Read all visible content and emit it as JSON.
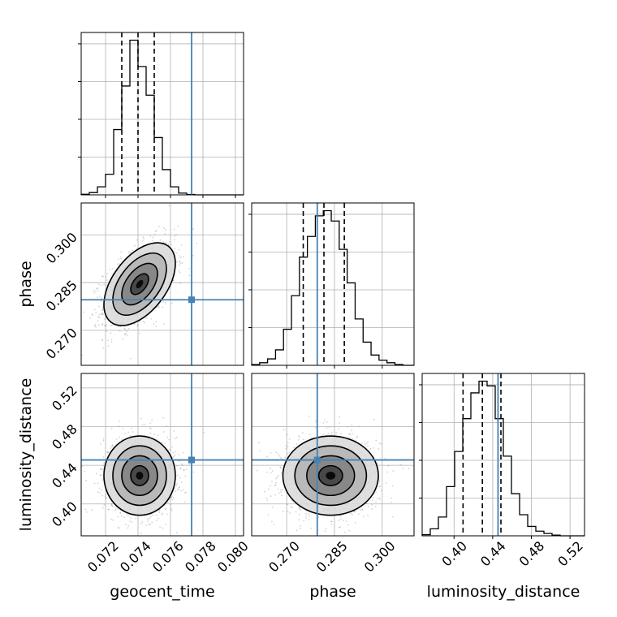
{
  "chart_data": {
    "type": "corner",
    "parameters": [
      "geocent_time",
      "phase",
      "luminosity_distance"
    ],
    "axis_labels": {
      "geocent_time": "geocent_time",
      "phase": "phase",
      "luminosity_distance": "luminosity_distance"
    },
    "ranges": {
      "geocent_time": [
        0.0705,
        0.0805
      ],
      "phase": [
        0.259,
        0.31
      ],
      "luminosity_distance": [
        0.367,
        0.535
      ]
    },
    "ticks": {
      "geocent_time": [
        0.072,
        0.074,
        0.076,
        0.078,
        0.08
      ],
      "phase": [
        0.27,
        0.285,
        0.3
      ],
      "luminosity_distance": [
        0.4,
        0.44,
        0.48,
        0.52
      ]
    },
    "tick_labels": {
      "geocent_time": [
        "0.072",
        "0.074",
        "0.076",
        "0.078",
        "0.080"
      ],
      "phase": [
        "0.270",
        "0.285",
        "0.300"
      ],
      "luminosity_distance": [
        "0.40",
        "0.44",
        "0.48",
        "0.52"
      ]
    },
    "injection": {
      "geocent_time": 0.0773,
      "phase": 0.2796,
      "luminosity_distance": 0.4455
    },
    "quantiles": {
      "geocent_time": [
        0.073,
        0.074,
        0.075
      ],
      "phase": [
        0.2752,
        0.2817,
        0.2881
      ],
      "luminosity_distance": [
        0.4093,
        0.4293,
        0.4485
      ]
    },
    "marginals": {
      "geocent_time": {
        "edges": [
          0.0705,
          0.071,
          0.0715,
          0.072,
          0.0725,
          0.073,
          0.0735,
          0.074,
          0.0745,
          0.075,
          0.0755,
          0.076,
          0.0765,
          0.077,
          0.0775,
          0.078,
          0.0785,
          0.079,
          0.0795,
          0.08,
          0.0805
        ],
        "counts": [
          0.5,
          2,
          7,
          18,
          57,
          95,
          135,
          112,
          87,
          50,
          22,
          7,
          1.5,
          0.3,
          0,
          0,
          0,
          0,
          0,
          0
        ]
      },
      "phase": {
        "edges": [
          0.259,
          0.2615,
          0.264,
          0.2665,
          0.269,
          0.2715,
          0.274,
          0.2765,
          0.279,
          0.2815,
          0.284,
          0.2865,
          0.289,
          0.2915,
          0.294,
          0.2965,
          0.299,
          0.3015,
          0.304,
          0.3065,
          0.31
        ],
        "counts": [
          0.3,
          1,
          2.5,
          6,
          14,
          27,
          42,
          50,
          58,
          60,
          56,
          45,
          32,
          18,
          9,
          4,
          2,
          1,
          0.3,
          0
        ]
      },
      "luminosity_distance": {
        "edges": [
          0.367,
          0.3754,
          0.3838,
          0.3922,
          0.4006,
          0.409,
          0.4174,
          0.4258,
          0.4342,
          0.4426,
          0.451,
          0.4594,
          0.4678,
          0.4762,
          0.4846,
          0.493,
          0.5014,
          0.5098,
          0.5182,
          0.5266,
          0.535
        ],
        "counts": [
          0.5,
          3,
          8,
          21,
          36,
          50,
          61,
          66,
          64,
          50,
          34,
          18,
          9,
          4,
          2,
          1,
          0.3,
          0,
          0,
          0
        ]
      }
    },
    "joint_2d": [
      {
        "x": "geocent_time",
        "y": "phase",
        "center": [
          0.0741,
          0.2845
        ],
        "std": [
          0.0011,
          0.0065
        ],
        "corr": 0.5
      },
      {
        "x": "geocent_time",
        "y": "luminosity_distance",
        "center": [
          0.0741,
          0.4293
        ],
        "std": [
          0.0011,
          0.0205
        ],
        "corr": 0.0
      },
      {
        "x": "phase",
        "y": "luminosity_distance",
        "center": [
          0.2838,
          0.4293
        ],
        "std": [
          0.0075,
          0.0205
        ],
        "corr": 0.0
      }
    ],
    "contour_levels_sigma": [
      0.5,
      1.0,
      1.5,
      2.0
    ],
    "colors": {
      "injection": "#4682b4",
      "hist": "#000000",
      "grid": "#b0b0b0",
      "scatter": "#555555"
    }
  }
}
